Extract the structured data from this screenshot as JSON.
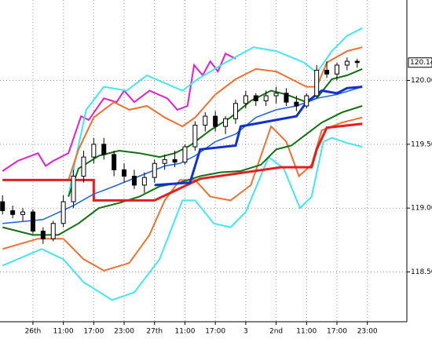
{
  "chart_data": {
    "type": "candlestick",
    "xlim": [
      -0.5,
      79.8
    ],
    "ylim": [
      118.11,
      120.63
    ],
    "xticks": [
      {
        "value": 6,
        "label": "26th"
      },
      {
        "value": 12,
        "label": "11:00"
      },
      {
        "value": 18,
        "label": "17:00"
      },
      {
        "value": 24,
        "label": "23:00"
      },
      {
        "value": 30,
        "label": "27th"
      },
      {
        "value": 36,
        "label": "11:00"
      },
      {
        "value": 42,
        "label": "17:00"
      },
      {
        "value": 48,
        "label": "3"
      },
      {
        "value": 54,
        "label": "2nd"
      },
      {
        "value": 60,
        "label": "11:00"
      },
      {
        "value": 66,
        "label": "17:00"
      },
      {
        "value": 72,
        "label": "23:00"
      }
    ],
    "yticks": [
      {
        "value": 120,
        "label": "120.00"
      },
      {
        "value": 119.5,
        "label": "119.50"
      },
      {
        "value": 119,
        "label": "119.00"
      },
      {
        "value": 118.5,
        "label": "118.50"
      }
    ],
    "grid": true,
    "last_price": 120.14,
    "x": [
      0,
      2,
      4,
      6,
      8,
      10,
      12,
      14,
      16,
      18,
      20,
      22,
      24,
      26,
      28,
      30,
      32,
      34,
      36,
      38,
      40,
      42,
      44,
      46,
      48,
      50,
      52,
      54,
      56,
      58,
      60,
      62,
      64,
      66,
      68,
      70
    ],
    "open": [
      119.05,
      118.98,
      118.95,
      118.97,
      118.82,
      118.76,
      118.88,
      119.05,
      119.25,
      119.4,
      119.5,
      119.42,
      119.3,
      119.25,
      119.18,
      119.24,
      119.35,
      119.38,
      119.36,
      119.48,
      119.65,
      119.72,
      119.64,
      119.7,
      119.82,
      119.88,
      119.84,
      119.88,
      119.9,
      119.83,
      119.8,
      119.88,
      120.08,
      120.05,
      120.12,
      120.15
    ],
    "high": [
      119.1,
      119.02,
      119.0,
      118.99,
      118.85,
      118.9,
      119.1,
      119.3,
      119.45,
      119.55,
      119.55,
      119.45,
      119.35,
      119.3,
      119.28,
      119.38,
      119.42,
      119.45,
      119.5,
      119.68,
      119.75,
      119.76,
      119.72,
      119.85,
      119.92,
      119.9,
      119.92,
      119.95,
      119.94,
      119.88,
      119.9,
      120.12,
      120.15,
      120.14,
      120.18,
      120.17
    ],
    "low": [
      118.95,
      118.92,
      118.9,
      118.8,
      118.72,
      118.74,
      118.85,
      119.0,
      119.2,
      119.35,
      119.38,
      119.25,
      119.2,
      119.15,
      119.12,
      119.2,
      119.3,
      119.32,
      119.34,
      119.45,
      119.6,
      119.6,
      119.58,
      119.66,
      119.78,
      119.8,
      119.8,
      119.82,
      119.8,
      119.76,
      119.78,
      119.86,
      120.02,
      120.0,
      120.08,
      120.1
    ],
    "close": [
      118.98,
      118.95,
      118.97,
      118.82,
      118.76,
      118.88,
      119.05,
      119.25,
      119.4,
      119.5,
      119.42,
      119.3,
      119.25,
      119.18,
      119.24,
      119.35,
      119.38,
      119.36,
      119.48,
      119.65,
      119.72,
      119.64,
      119.7,
      119.82,
      119.88,
      119.84,
      119.88,
      119.9,
      119.83,
      119.8,
      119.88,
      120.08,
      120.05,
      120.12,
      120.15,
      120.14
    ],
    "overlays": [
      {
        "color": "#e020d0",
        "width": 2,
        "x": [
          0,
          3,
          7,
          8.5,
          10,
          13,
          15.5,
          17,
          20,
          22.5,
          24,
          26,
          29,
          32.5,
          34.5,
          36.5,
          37.8,
          39.5,
          41,
          42.5,
          44,
          46
        ],
        "values": [
          119.29,
          119.37,
          119.43,
          119.33,
          119.37,
          119.43,
          119.72,
          119.69,
          119.86,
          119.83,
          119.92,
          119.83,
          119.92,
          119.86,
          119.77,
          119.8,
          120.12,
          120.04,
          120.15,
          120.07,
          120.21,
          120.17
        ]
      },
      {
        "color": "#40e8f0",
        "width": 2,
        "x": [
          13,
          14.5,
          16.5,
          20,
          24.5,
          28.5,
          32,
          35.5,
          38.5,
          44,
          49.5,
          54,
          59.5,
          62,
          65,
          68,
          71
        ],
        "values": [
          119.09,
          119.4,
          119.77,
          119.95,
          119.92,
          120.04,
          119.98,
          119.92,
          120.01,
          120.14,
          120.26,
          120.23,
          120.14,
          120.06,
          120.23,
          120.35,
          120.41
        ]
      },
      {
        "color": "#40e8f0",
        "width": 2,
        "x": [
          0,
          7.7,
          12,
          16,
          21.6,
          26,
          31,
          35.5,
          38,
          41.7,
          45,
          48,
          52.5,
          55.5,
          58.7,
          61,
          63.3,
          65,
          68,
          71
        ],
        "values": [
          118.55,
          118.68,
          118.6,
          118.42,
          118.28,
          118.34,
          118.6,
          119.06,
          119.06,
          118.88,
          118.85,
          118.97,
          119.4,
          119.31,
          119.0,
          119.09,
          119.52,
          119.55,
          119.51,
          119.48
        ]
      },
      {
        "color": "#f07030",
        "width": 2,
        "x": [
          13,
          15,
          18,
          22,
          25,
          28.5,
          32,
          35.5,
          38,
          42,
          46,
          50,
          54,
          57,
          60,
          62,
          64,
          68,
          71
        ],
        "values": [
          119.22,
          119.46,
          119.71,
          119.83,
          119.77,
          119.8,
          119.71,
          119.64,
          119.71,
          119.89,
          120.01,
          120.09,
          120.07,
          120.01,
          119.95,
          119.95,
          120.14,
          120.23,
          120.26
        ]
      },
      {
        "color": "#f07030",
        "width": 2,
        "x": [
          0,
          7,
          12,
          16,
          20,
          25,
          29,
          32,
          35,
          38,
          41,
          45,
          49,
          53,
          56,
          58.5,
          61,
          63,
          67,
          71
        ],
        "values": [
          118.68,
          118.76,
          118.76,
          118.6,
          118.51,
          118.57,
          118.79,
          119.06,
          119.22,
          119.22,
          119.09,
          119.06,
          119.18,
          119.64,
          119.52,
          119.25,
          119.34,
          119.61,
          119.67,
          119.71
        ]
      },
      {
        "color": "#107010",
        "width": 2,
        "x": [
          13,
          15,
          19,
          23,
          27,
          31,
          34,
          37,
          41,
          45,
          49,
          53,
          56,
          60,
          62,
          65,
          68,
          71
        ],
        "values": [
          119.09,
          119.31,
          119.41,
          119.45,
          119.43,
          119.4,
          119.43,
          119.49,
          119.61,
          119.71,
          119.84,
          119.92,
          119.89,
          119.83,
          119.86,
          120.01,
          120.04,
          120.09
        ]
      },
      {
        "color": "#107010",
        "width": 2,
        "x": [
          0,
          6,
          11,
          15,
          19,
          23,
          27,
          31,
          35,
          39,
          43,
          47,
          51,
          54,
          57,
          60,
          63,
          67,
          71
        ],
        "values": [
          118.85,
          118.79,
          118.79,
          118.88,
          119.0,
          119.04,
          119.09,
          119.17,
          119.2,
          119.25,
          119.28,
          119.29,
          119.34,
          119.46,
          119.49,
          119.58,
          119.67,
          119.75,
          119.8
        ]
      },
      {
        "color": "#e02020",
        "width": 3,
        "x": [
          0,
          18,
          18.01,
          30,
          39,
          55,
          61,
          62,
          64,
          71
        ],
        "values": [
          119.22,
          119.22,
          119.06,
          119.06,
          119.23,
          119.32,
          119.32,
          119.46,
          119.63,
          119.66
        ]
      },
      {
        "color": "#2060e0",
        "width": 1.5,
        "x": [
          0,
          8,
          14,
          18,
          22,
          27,
          32,
          35,
          38,
          42,
          46,
          50,
          54,
          58,
          62,
          66,
          71
        ],
        "values": [
          118.88,
          118.91,
          119.02,
          119.11,
          119.17,
          119.25,
          119.33,
          119.35,
          119.41,
          119.52,
          119.58,
          119.71,
          119.77,
          119.8,
          119.86,
          119.89,
          119.95
        ]
      },
      {
        "color": "#1030d0",
        "width": 3,
        "x": [
          30,
          37,
          39,
          46,
          47,
          58,
          60,
          63,
          66,
          68,
          71
        ],
        "values": [
          119.18,
          119.2,
          119.46,
          119.49,
          119.64,
          119.72,
          119.83,
          119.92,
          119.9,
          119.94,
          119.95
        ]
      }
    ]
  }
}
